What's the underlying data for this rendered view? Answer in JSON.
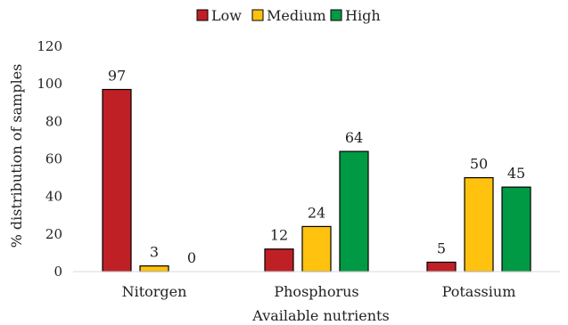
{
  "chart_data": {
    "type": "bar",
    "categories": [
      "Nitorgen",
      "Phosphorus",
      "Potassium"
    ],
    "series": [
      {
        "name": "Low",
        "color": "#bf2026",
        "values": [
          97,
          12,
          5
        ]
      },
      {
        "name": "Medium",
        "color": "#ffc20e",
        "values": [
          3,
          24,
          50
        ]
      },
      {
        "name": "High",
        "color": "#009a44",
        "values": [
          0,
          64,
          45
        ]
      }
    ],
    "xlabel": "Available nutrients",
    "ylabel": "% distribution of samples",
    "ylim": [
      0,
      120
    ],
    "yticks": [
      0,
      20,
      40,
      60,
      80,
      100,
      120
    ],
    "grid": false,
    "legend_position": "top"
  }
}
